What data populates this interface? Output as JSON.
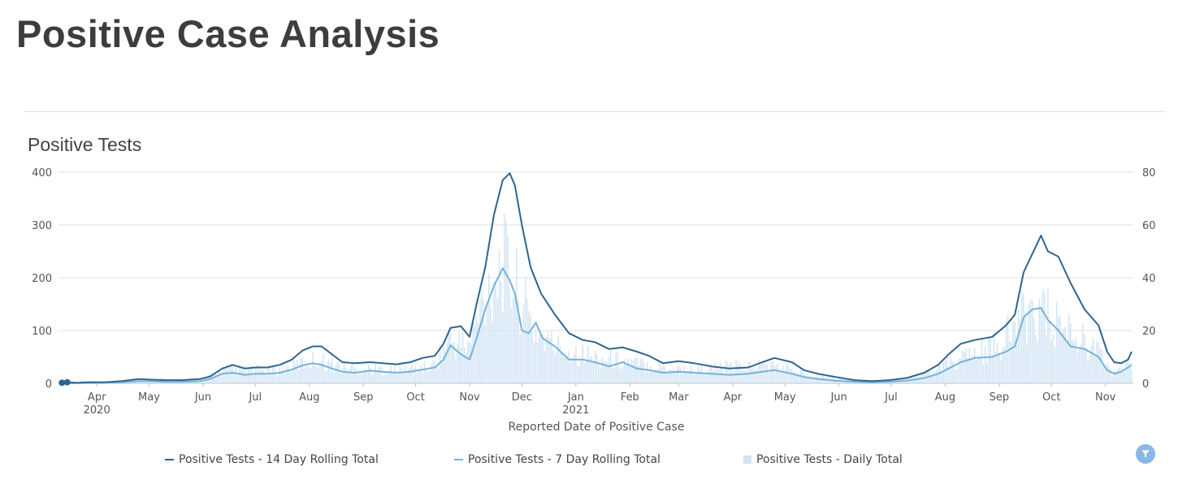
{
  "page": {
    "title": "Positive Case Analysis"
  },
  "chart_data": {
    "type": "line",
    "title": "Positive Tests",
    "xlabel": "Reported Date of Positive Case",
    "ylabel_left": "",
    "ylabel_right": "",
    "ylim_left": [
      0,
      400
    ],
    "ylim_right": [
      0,
      80
    ],
    "yticks_left": [
      0,
      100,
      200,
      300,
      400
    ],
    "yticks_right": [
      0,
      20,
      40,
      60,
      80
    ],
    "xlim": [
      "2020-03-10",
      "2021-11-17"
    ],
    "grid": true,
    "legend_position": "bottom",
    "x_ticks": [
      {
        "date": "2020-04-01",
        "label": "Apr",
        "sublabel": "2020"
      },
      {
        "date": "2020-05-01",
        "label": "May",
        "sublabel": ""
      },
      {
        "date": "2020-06-01",
        "label": "Jun",
        "sublabel": ""
      },
      {
        "date": "2020-07-01",
        "label": "Jul",
        "sublabel": ""
      },
      {
        "date": "2020-08-01",
        "label": "Aug",
        "sublabel": ""
      },
      {
        "date": "2020-09-01",
        "label": "Sep",
        "sublabel": ""
      },
      {
        "date": "2020-10-01",
        "label": "Oct",
        "sublabel": ""
      },
      {
        "date": "2020-11-01",
        "label": "Nov",
        "sublabel": ""
      },
      {
        "date": "2020-12-01",
        "label": "Dec",
        "sublabel": ""
      },
      {
        "date": "2021-01-01",
        "label": "Jan",
        "sublabel": "2021"
      },
      {
        "date": "2021-02-01",
        "label": "Feb",
        "sublabel": ""
      },
      {
        "date": "2021-03-01",
        "label": "Mar",
        "sublabel": ""
      },
      {
        "date": "2021-04-01",
        "label": "Apr",
        "sublabel": ""
      },
      {
        "date": "2021-05-01",
        "label": "May",
        "sublabel": ""
      },
      {
        "date": "2021-06-01",
        "label": "Jun",
        "sublabel": ""
      },
      {
        "date": "2021-07-01",
        "label": "Jul",
        "sublabel": ""
      },
      {
        "date": "2021-08-01",
        "label": "Aug",
        "sublabel": ""
      },
      {
        "date": "2021-09-01",
        "label": "Sep",
        "sublabel": ""
      },
      {
        "date": "2021-10-01",
        "label": "Oct",
        "sublabel": ""
      },
      {
        "date": "2021-11-01",
        "label": "Nov",
        "sublabel": ""
      }
    ],
    "series": [
      {
        "name": "Positive Tests - 14 Day Rolling Total",
        "axis": "left",
        "kind": "line",
        "color": "#2e6590",
        "points": [
          [
            "2020-03-12",
            1
          ],
          [
            "2020-03-15",
            2
          ],
          [
            "2020-03-21",
            1
          ],
          [
            "2020-03-25",
            2
          ],
          [
            "2020-04-05",
            2
          ],
          [
            "2020-04-15",
            4
          ],
          [
            "2020-04-25",
            8
          ],
          [
            "2020-05-01",
            7
          ],
          [
            "2020-05-10",
            6
          ],
          [
            "2020-05-20",
            6
          ],
          [
            "2020-05-30",
            8
          ],
          [
            "2020-06-05",
            13
          ],
          [
            "2020-06-12",
            28
          ],
          [
            "2020-06-18",
            35
          ],
          [
            "2020-06-25",
            28
          ],
          [
            "2020-07-01",
            30
          ],
          [
            "2020-07-08",
            30
          ],
          [
            "2020-07-15",
            35
          ],
          [
            "2020-07-22",
            45
          ],
          [
            "2020-07-28",
            62
          ],
          [
            "2020-08-03",
            70
          ],
          [
            "2020-08-08",
            70
          ],
          [
            "2020-08-14",
            55
          ],
          [
            "2020-08-20",
            40
          ],
          [
            "2020-08-27",
            38
          ],
          [
            "2020-09-05",
            40
          ],
          [
            "2020-09-12",
            38
          ],
          [
            "2020-09-20",
            36
          ],
          [
            "2020-09-28",
            40
          ],
          [
            "2020-10-05",
            48
          ],
          [
            "2020-10-12",
            52
          ],
          [
            "2020-10-17",
            75
          ],
          [
            "2020-10-21",
            105
          ],
          [
            "2020-10-27",
            108
          ],
          [
            "2020-11-01",
            88
          ],
          [
            "2020-11-05",
            150
          ],
          [
            "2020-11-10",
            220
          ],
          [
            "2020-11-15",
            320
          ],
          [
            "2020-11-20",
            385
          ],
          [
            "2020-11-24",
            398
          ],
          [
            "2020-11-27",
            375
          ],
          [
            "2020-12-01",
            300
          ],
          [
            "2020-12-06",
            220
          ],
          [
            "2020-12-12",
            170
          ],
          [
            "2020-12-20",
            130
          ],
          [
            "2020-12-28",
            95
          ],
          [
            "2021-01-05",
            82
          ],
          [
            "2021-01-12",
            78
          ],
          [
            "2021-01-20",
            65
          ],
          [
            "2021-01-28",
            68
          ],
          [
            "2021-02-05",
            60
          ],
          [
            "2021-02-12",
            52
          ],
          [
            "2021-02-20",
            38
          ],
          [
            "2021-03-01",
            42
          ],
          [
            "2021-03-10",
            38
          ],
          [
            "2021-03-20",
            32
          ],
          [
            "2021-03-30",
            28
          ],
          [
            "2021-04-10",
            30
          ],
          [
            "2021-04-18",
            40
          ],
          [
            "2021-04-25",
            48
          ],
          [
            "2021-05-05",
            40
          ],
          [
            "2021-05-12",
            25
          ],
          [
            "2021-05-20",
            18
          ],
          [
            "2021-05-30",
            12
          ],
          [
            "2021-06-10",
            6
          ],
          [
            "2021-06-20",
            4
          ],
          [
            "2021-06-30",
            6
          ],
          [
            "2021-07-10",
            10
          ],
          [
            "2021-07-20",
            20
          ],
          [
            "2021-07-28",
            35
          ],
          [
            "2021-08-03",
            55
          ],
          [
            "2021-08-10",
            75
          ],
          [
            "2021-08-18",
            82
          ],
          [
            "2021-08-28",
            88
          ],
          [
            "2021-09-05",
            110
          ],
          [
            "2021-09-10",
            130
          ],
          [
            "2021-09-15",
            210
          ],
          [
            "2021-09-20",
            245
          ],
          [
            "2021-09-25",
            280
          ],
          [
            "2021-09-29",
            250
          ],
          [
            "2021-10-05",
            240
          ],
          [
            "2021-10-12",
            190
          ],
          [
            "2021-10-20",
            140
          ],
          [
            "2021-10-28",
            110
          ],
          [
            "2021-11-02",
            60
          ],
          [
            "2021-11-06",
            40
          ],
          [
            "2021-11-10",
            38
          ],
          [
            "2021-11-14",
            45
          ],
          [
            "2021-11-16",
            60
          ]
        ]
      },
      {
        "name": "Positive Tests - 7 Day Rolling Total",
        "axis": "left",
        "kind": "line",
        "color": "#76b2d8",
        "points": [
          [
            "2020-03-12",
            0
          ],
          [
            "2020-04-05",
            1
          ],
          [
            "2020-04-15",
            2
          ],
          [
            "2020-04-25",
            4
          ],
          [
            "2020-05-01",
            4
          ],
          [
            "2020-05-10",
            3
          ],
          [
            "2020-05-20",
            3
          ],
          [
            "2020-05-30",
            4
          ],
          [
            "2020-06-05",
            8
          ],
          [
            "2020-06-12",
            18
          ],
          [
            "2020-06-18",
            20
          ],
          [
            "2020-06-25",
            16
          ],
          [
            "2020-07-01",
            18
          ],
          [
            "2020-07-08",
            18
          ],
          [
            "2020-07-15",
            20
          ],
          [
            "2020-07-22",
            26
          ],
          [
            "2020-07-28",
            34
          ],
          [
            "2020-08-03",
            38
          ],
          [
            "2020-08-08",
            35
          ],
          [
            "2020-08-14",
            28
          ],
          [
            "2020-08-20",
            22
          ],
          [
            "2020-08-27",
            20
          ],
          [
            "2020-09-05",
            24
          ],
          [
            "2020-09-12",
            22
          ],
          [
            "2020-09-20",
            20
          ],
          [
            "2020-09-28",
            22
          ],
          [
            "2020-10-05",
            26
          ],
          [
            "2020-10-12",
            30
          ],
          [
            "2020-10-17",
            45
          ],
          [
            "2020-10-21",
            72
          ],
          [
            "2020-10-27",
            55
          ],
          [
            "2020-11-01",
            45
          ],
          [
            "2020-11-05",
            85
          ],
          [
            "2020-11-10",
            140
          ],
          [
            "2020-11-15",
            185
          ],
          [
            "2020-11-20",
            218
          ],
          [
            "2020-11-24",
            195
          ],
          [
            "2020-11-27",
            170
          ],
          [
            "2020-12-01",
            100
          ],
          [
            "2020-12-05",
            95
          ],
          [
            "2020-12-09",
            115
          ],
          [
            "2020-12-13",
            85
          ],
          [
            "2020-12-20",
            70
          ],
          [
            "2020-12-28",
            45
          ],
          [
            "2021-01-05",
            45
          ],
          [
            "2021-01-12",
            40
          ],
          [
            "2021-01-20",
            32
          ],
          [
            "2021-01-28",
            40
          ],
          [
            "2021-02-05",
            28
          ],
          [
            "2021-02-12",
            25
          ],
          [
            "2021-02-20",
            20
          ],
          [
            "2021-03-01",
            22
          ],
          [
            "2021-03-10",
            20
          ],
          [
            "2021-03-20",
            18
          ],
          [
            "2021-03-30",
            16
          ],
          [
            "2021-04-10",
            18
          ],
          [
            "2021-04-18",
            22
          ],
          [
            "2021-04-25",
            25
          ],
          [
            "2021-05-05",
            18
          ],
          [
            "2021-05-12",
            12
          ],
          [
            "2021-05-20",
            8
          ],
          [
            "2021-05-30",
            5
          ],
          [
            "2021-06-10",
            3
          ],
          [
            "2021-06-20",
            2
          ],
          [
            "2021-06-30",
            3
          ],
          [
            "2021-07-10",
            5
          ],
          [
            "2021-07-20",
            10
          ],
          [
            "2021-07-28",
            18
          ],
          [
            "2021-08-03",
            28
          ],
          [
            "2021-08-10",
            40
          ],
          [
            "2021-08-18",
            48
          ],
          [
            "2021-08-28",
            50
          ],
          [
            "2021-09-05",
            60
          ],
          [
            "2021-09-10",
            70
          ],
          [
            "2021-09-15",
            125
          ],
          [
            "2021-09-20",
            140
          ],
          [
            "2021-09-25",
            143
          ],
          [
            "2021-09-29",
            120
          ],
          [
            "2021-10-05",
            100
          ],
          [
            "2021-10-12",
            70
          ],
          [
            "2021-10-20",
            65
          ],
          [
            "2021-10-28",
            50
          ],
          [
            "2021-11-02",
            25
          ],
          [
            "2021-11-06",
            18
          ],
          [
            "2021-11-10",
            22
          ],
          [
            "2021-11-14",
            30
          ],
          [
            "2021-11-16",
            35
          ]
        ]
      },
      {
        "name": "Positive Tests - Daily Total",
        "axis": "right",
        "kind": "bar",
        "color": "#cfe3f4",
        "envelope": [
          [
            "2020-03-12",
            0
          ],
          [
            "2020-04-10",
            0.5
          ],
          [
            "2020-05-01",
            1.5
          ],
          [
            "2020-06-01",
            1.5
          ],
          [
            "2020-06-15",
            5
          ],
          [
            "2020-07-15",
            5
          ],
          [
            "2020-08-05",
            9
          ],
          [
            "2020-08-20",
            6
          ],
          [
            "2020-09-15",
            5
          ],
          [
            "2020-10-10",
            6
          ],
          [
            "2020-10-20",
            16
          ],
          [
            "2020-11-01",
            14
          ],
          [
            "2020-11-10",
            34
          ],
          [
            "2020-11-20",
            46
          ],
          [
            "2020-11-28",
            36
          ],
          [
            "2020-12-08",
            20
          ],
          [
            "2020-12-20",
            14
          ],
          [
            "2021-01-10",
            10
          ],
          [
            "2021-02-10",
            7
          ],
          [
            "2021-03-10",
            5
          ],
          [
            "2021-04-20",
            7
          ],
          [
            "2021-05-20",
            3
          ],
          [
            "2021-06-15",
            1
          ],
          [
            "2021-07-15",
            2
          ],
          [
            "2021-08-10",
            9
          ],
          [
            "2021-09-01",
            14
          ],
          [
            "2021-09-20",
            29
          ],
          [
            "2021-10-05",
            22
          ],
          [
            "2021-10-25",
            14
          ],
          [
            "2021-11-05",
            4
          ],
          [
            "2021-11-16",
            7
          ]
        ]
      }
    ]
  },
  "legend": {
    "items": [
      {
        "label": "Positive Tests - 14 Day Rolling Total",
        "color": "#2e6590"
      },
      {
        "label": "Positive Tests - 7 Day Rolling Total",
        "color": "#76b2d8"
      },
      {
        "label": "Positive Tests - Daily Total",
        "color": "#cfe3f4"
      }
    ]
  },
  "icons": {
    "filter": "filter-icon"
  }
}
